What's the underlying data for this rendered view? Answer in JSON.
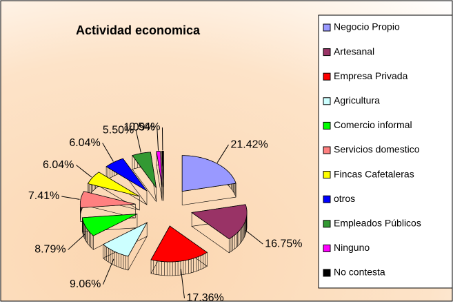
{
  "chart_data": {
    "type": "pie",
    "title": "Actividad economica",
    "categories": [
      "Negocio Propio",
      "Artesanal",
      "Empresa Privada",
      "Agricultura",
      "Comercio informal",
      "Servicios domestico",
      "Fincas Cafetaleras",
      "otros",
      "Empleados Públicos",
      "Ninguno",
      "No contesta"
    ],
    "values": [
      21.42,
      16.75,
      17.36,
      9.06,
      8.79,
      7.41,
      6.04,
      6.04,
      5.5,
      1.09,
      0.54
    ],
    "value_labels": [
      "21.42%",
      "16.75%",
      "17.36%",
      "9.06%",
      "8.79%",
      "7.41%",
      "6.04%",
      "6.04%",
      "5.50%",
      "1.09%",
      "0.54%"
    ],
    "colors": [
      "#9999ff",
      "#993366",
      "#ff0000",
      "#ccffff",
      "#00ff00",
      "#ff8080",
      "#ffff00",
      "#0000ff",
      "#339933",
      "#ff00ff",
      "#000000"
    ],
    "legend": "right"
  }
}
